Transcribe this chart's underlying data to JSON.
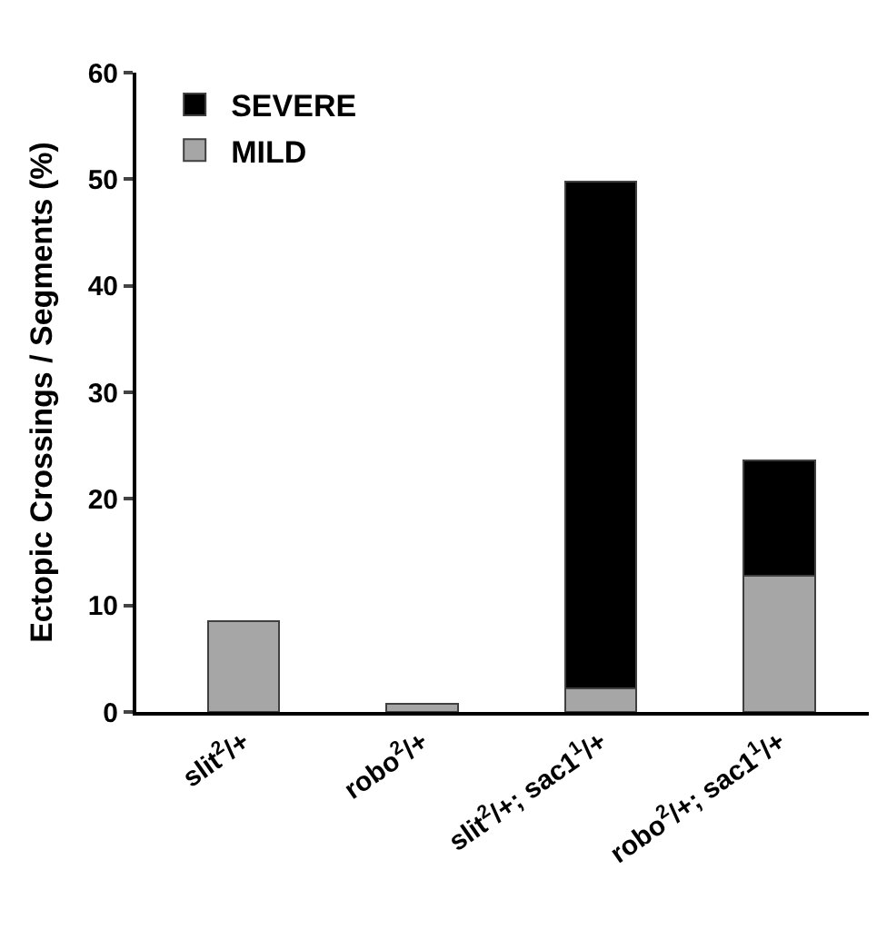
{
  "chart_data": {
    "type": "bar",
    "stacked": true,
    "ylabel": "Ectopic Crossings / Segments (%)",
    "categories": [
      "slit$^{2}$/+",
      "robo$^{2}$/+",
      "slit$^{2}$/+; sac1$^{1}$/+",
      "robo$^{2}$/+; sac1$^{1}$/+"
    ],
    "series": [
      {
        "name": "MILD",
        "color": "#a6a6a6",
        "values": [
          8.5,
          0.8,
          2.2,
          12.8
        ]
      },
      {
        "name": "SEVERE",
        "color": "#000000",
        "values": [
          null,
          null,
          47.6,
          10.8
        ]
      }
    ],
    "ylim": [
      0,
      60
    ],
    "yticks": [
      0,
      10,
      20,
      30,
      40,
      50,
      60
    ],
    "legend": "top left"
  }
}
